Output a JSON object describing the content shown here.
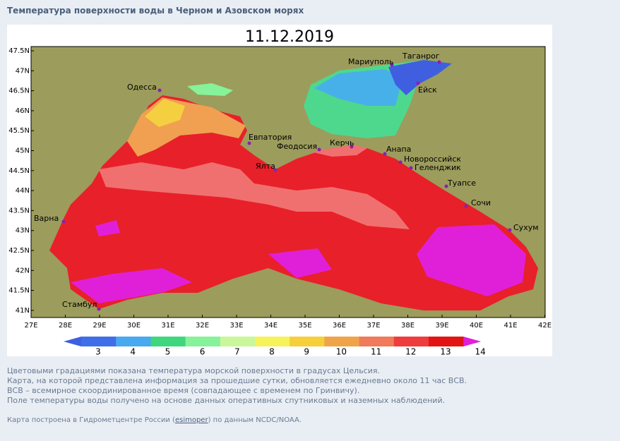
{
  "header": {
    "title": "Температура поверхности воды в Черном и Азовском морях"
  },
  "map": {
    "date": "11.12.2019",
    "lat_labels": [
      "47.5N",
      "47N",
      "46.5N",
      "46N",
      "45.5N",
      "45N",
      "44.5N",
      "44N",
      "43.5N",
      "43N",
      "42.5N",
      "42N",
      "41.5N",
      "41N"
    ],
    "lon_labels": [
      "27E",
      "28E",
      "29E",
      "30E",
      "31E",
      "32E",
      "33E",
      "34E",
      "35E",
      "36E",
      "37E",
      "38E",
      "39E",
      "40E",
      "41E",
      "42E"
    ],
    "cities": [
      "Одесса",
      "Мариуполь",
      "Таганрог",
      "Ейск",
      "Евпатория",
      "Феодосия",
      "Керчь",
      "Анапа",
      "Новороссийск",
      "Геленджик",
      "Ялта",
      "Туапсе",
      "Сочи",
      "Сухум",
      "Варна",
      "Стамбул"
    ]
  },
  "legend": {
    "values": [
      3,
      4,
      5,
      6,
      7,
      8,
      9,
      10,
      11,
      12,
      13,
      14
    ],
    "colors": [
      "#3f5fe0",
      "#3f6fe8",
      "#48a8f0",
      "#3ed77e",
      "#86f29a",
      "#c9f79a",
      "#f6f25a",
      "#f6cf3a",
      "#f0a44a",
      "#f07a5a",
      "#ef3c3c",
      "#e21414",
      "#e01fd8"
    ]
  },
  "notes": [
    "Цветовыми градациями показана температура морской поверхности в градусах Цельсия.",
    "Карта, на которой представлена информация за прошедшие сутки, обновляется ежедневно около 11 час ВСВ.",
    "ВСВ – всемирное скоординированное время (совпадающее с временем по Гринвичу).",
    "Поле температуры воды получено на основе данных оперативных спутниковых и наземных наблюдений."
  ],
  "footer": {
    "before": "Карта построена в Гидрометцентре России (",
    "link": "esimoper",
    "after": ") по данным NCDC/NOAA."
  }
}
